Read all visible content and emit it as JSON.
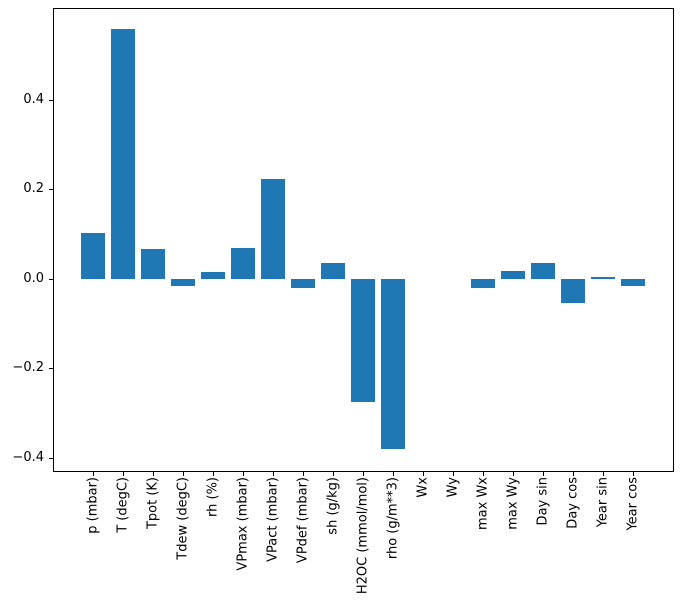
{
  "chart_data": {
    "type": "bar",
    "title": "",
    "xlabel": "",
    "ylabel": "",
    "categories": [
      "p (mbar)",
      "T (degC)",
      "Tpot (K)",
      "Tdew (degC)",
      "rh (%)",
      "VPmax (mbar)",
      "VPact (mbar)",
      "VPdef (mbar)",
      "sh (g/kg)",
      "H2OC (mmol/mol)",
      "rho (g/m**3)",
      "Wx",
      "Wy",
      "max Wx",
      "max Wy",
      "Day sin",
      "Day cos",
      "Year sin",
      "Year cos"
    ],
    "values": [
      0.103,
      0.558,
      0.066,
      -0.016,
      0.015,
      0.069,
      0.223,
      -0.022,
      0.034,
      -0.277,
      -0.382,
      0.0,
      0.0,
      -0.022,
      0.018,
      0.036,
      -0.055,
      0.003,
      -0.016
    ],
    "bar_color": "#1f77b4",
    "bar_width": 0.8,
    "xlim": [
      -1.34,
      19.34
    ],
    "ylim": [
      -0.43,
      0.605
    ],
    "yticks": [
      0.4,
      0.2,
      0.0,
      -0.2,
      -0.4
    ],
    "ytick_labels": [
      "0.4",
      "0.2",
      "0.0",
      "−0.2",
      "−0.4"
    ],
    "x_tick_rotation": 90,
    "grid": false,
    "legend": false,
    "spine_color": "#000000",
    "background_color": "#ffffff"
  }
}
